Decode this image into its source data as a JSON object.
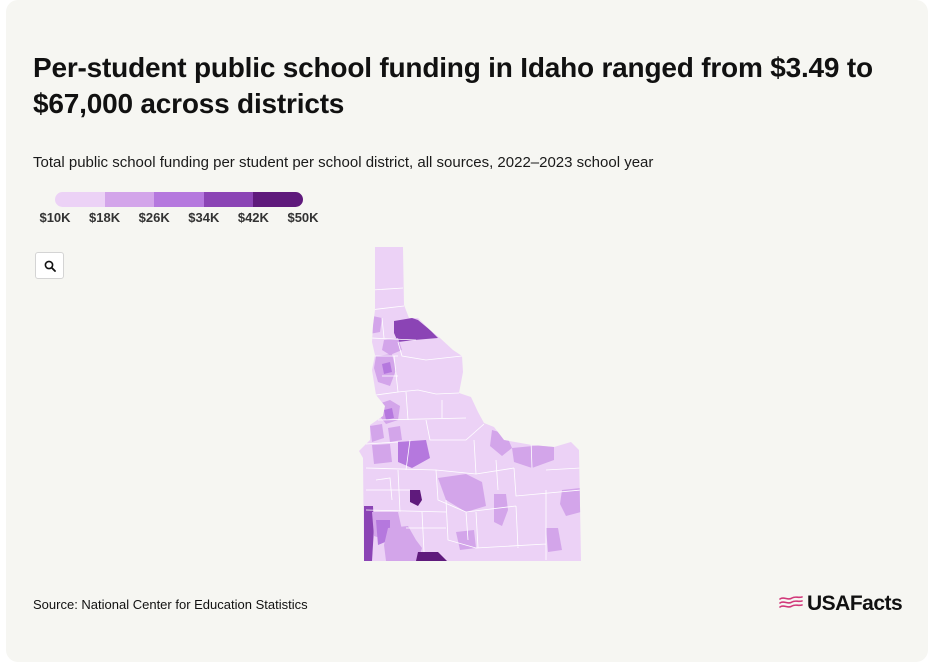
{
  "header": {
    "title": "Per-student public school funding in Idaho ranged from $3.49 to $67,000 across districts",
    "subtitle": "Total public school funding per student per school district, all sources, 2022–2023 school year"
  },
  "legend": {
    "colors": [
      "#ecd2f6",
      "#d3a5ea",
      "#b578de",
      "#8b44b5",
      "#5f1a7c"
    ],
    "ticks": [
      "$10K",
      "$18K",
      "$26K",
      "$34K",
      "$42K",
      "$50K"
    ]
  },
  "controls": {
    "zoom_icon": "search-icon"
  },
  "map": {
    "state": "Idaho",
    "base_color": "#ecd2f6",
    "border_color": "#ffffff"
  },
  "footer": {
    "source": "Source: National Center for Education Statistics",
    "brand": "USAFacts",
    "brand_color": "#d1387a"
  }
}
